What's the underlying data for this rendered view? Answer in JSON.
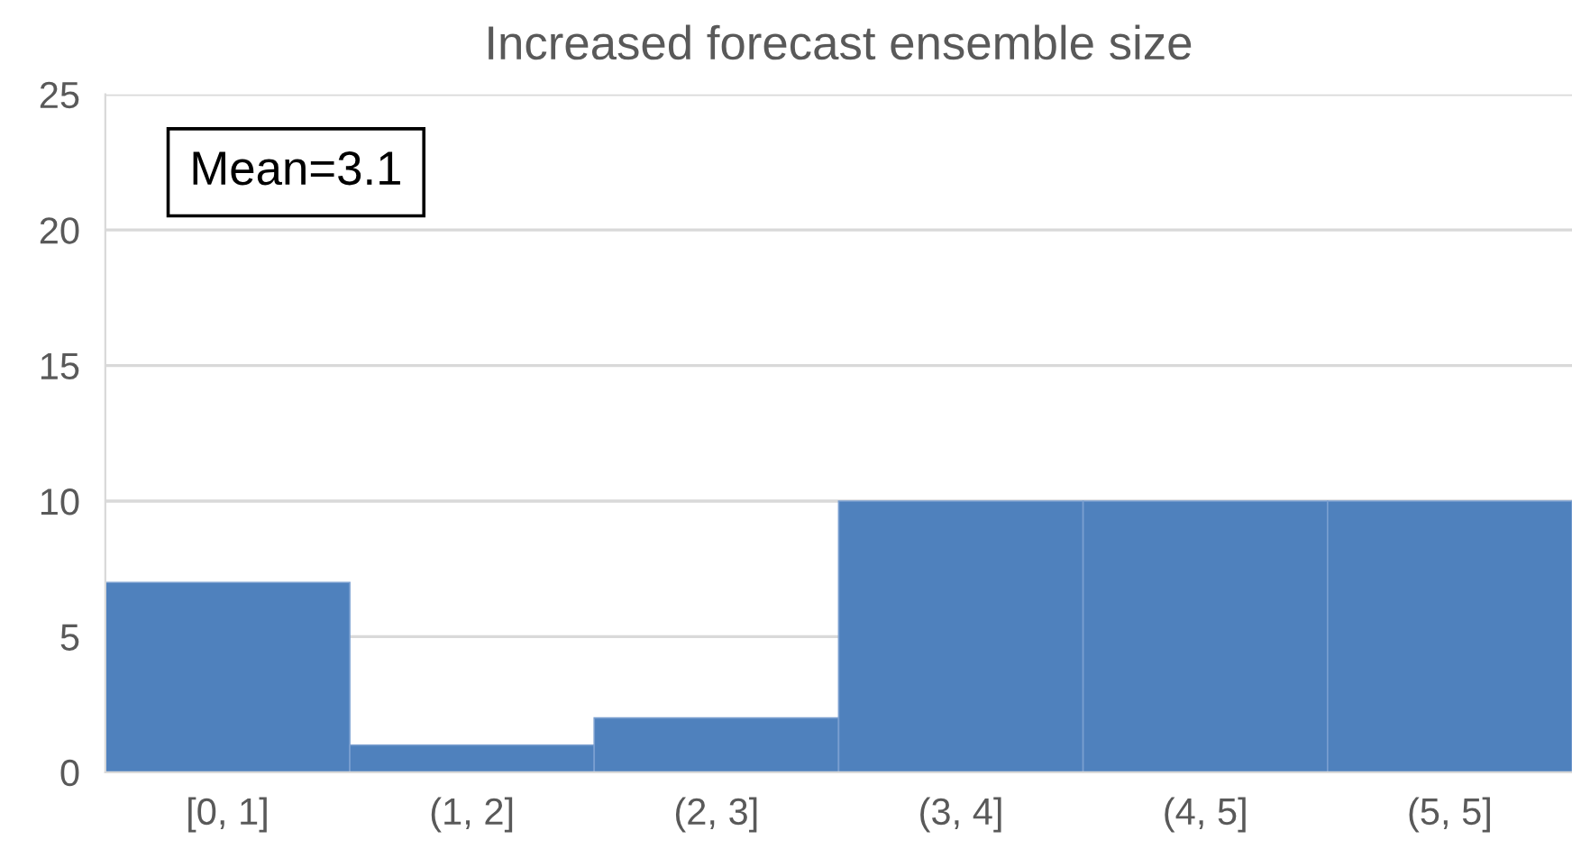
{
  "chart_data": {
    "type": "bar",
    "title": "Increased forecast ensemble size",
    "categories": [
      "[0, 1]",
      "(1, 2]",
      "(2, 3]",
      "(3, 4]",
      "(4, 5]",
      "(5, 5]"
    ],
    "values": [
      7,
      1,
      2,
      10,
      10,
      10
    ],
    "color": "#4f81bd",
    "ylim": [
      0,
      25
    ],
    "yticks": [
      0,
      5,
      10,
      15,
      20,
      25
    ],
    "grid": "y",
    "annotations": [
      "Mean=3.1"
    ]
  }
}
